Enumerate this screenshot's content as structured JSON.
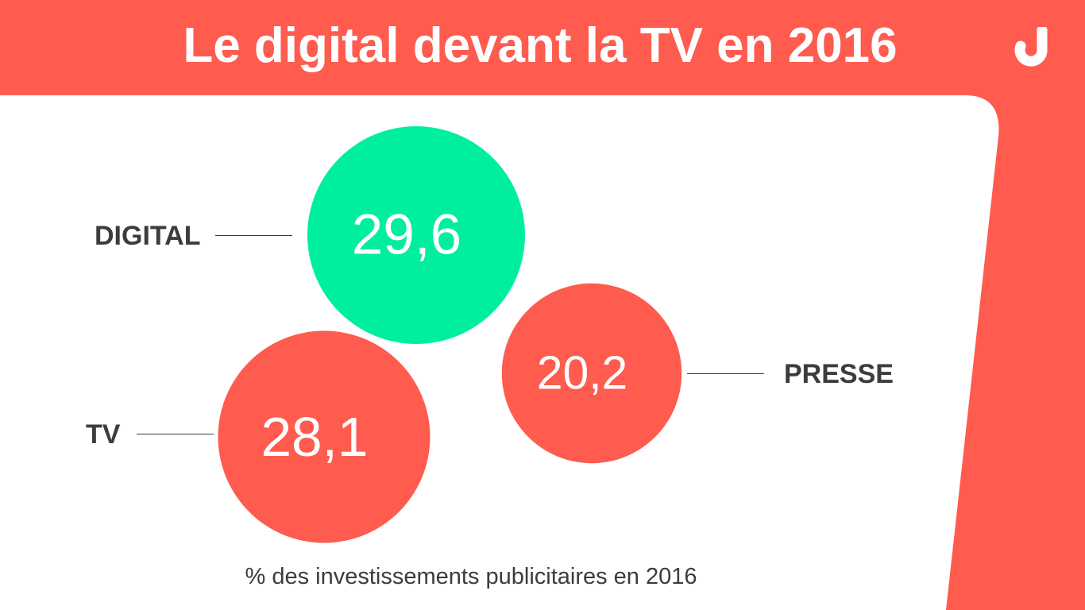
{
  "title": "Le digital devant la TV en 2016",
  "subtitle": "% des investissements publicitaires en 2016",
  "logo_icon": "brand-logo-icon",
  "colors": {
    "brand_red": "#ff5b4f",
    "digital_green": "#00ef9e",
    "panel": "#ffffff",
    "text_dark": "#3c3c3c",
    "bubble_text": "#ffffff"
  },
  "chart_data": {
    "type": "bubble",
    "title": "Le digital devant la TV en 2016",
    "subtitle": "% des investissements publicitaires en 2016",
    "unit": "%",
    "series": [
      {
        "name": "DIGITAL",
        "value": 29.6,
        "label": "29,6",
        "color": "#00ef9e"
      },
      {
        "name": "TV",
        "value": 28.1,
        "label": "28,1",
        "color": "#ff5b4f"
      },
      {
        "name": "PRESSE",
        "value": 20.2,
        "label": "20,2",
        "color": "#ff5b4f"
      }
    ],
    "legend": "none",
    "grid": false
  }
}
